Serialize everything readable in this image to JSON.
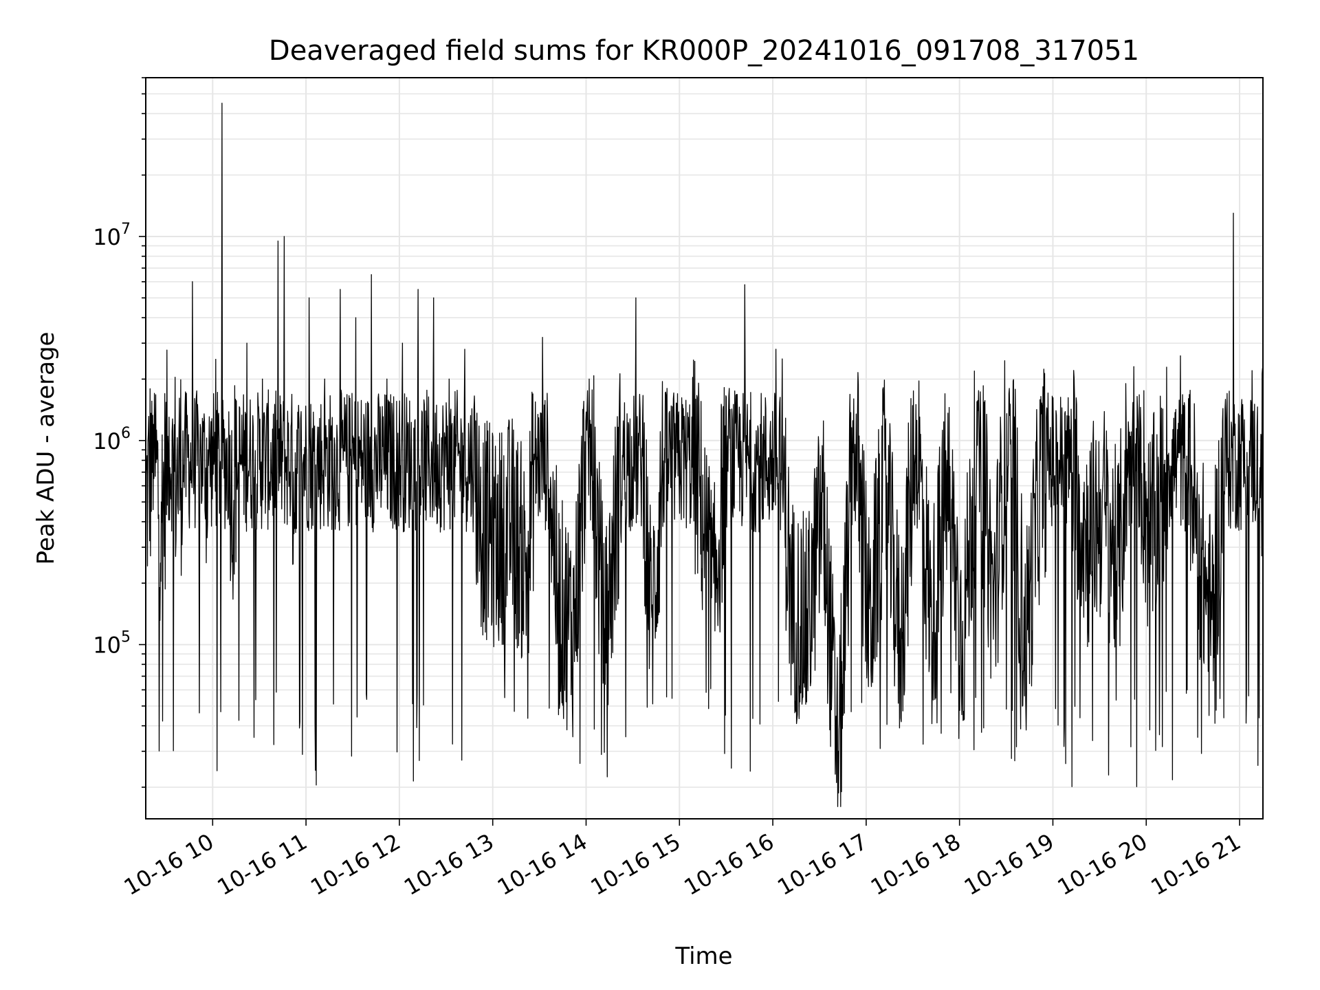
{
  "chart_data": {
    "type": "line",
    "title": "Deaveraged field sums for KR000P_20241016_091708_317051",
    "xlabel": "Time",
    "ylabel": "Peak ADU - average",
    "x_range": [
      "10-16 09:17",
      "10-16 21:15"
    ],
    "y_scale": "log",
    "ylim": [
      14000,
      60000000
    ],
    "grid": true,
    "x_ticks": [
      "10-16 10",
      "10-16 11",
      "10-16 12",
      "10-16 13",
      "10-16 14",
      "10-16 15",
      "10-16 16",
      "10-16 17",
      "10-16 18",
      "10-16 19",
      "10-16 20",
      "10-16 21"
    ],
    "x_tick_hours": [
      10,
      11,
      12,
      13,
      14,
      15,
      16,
      17,
      18,
      19,
      20,
      21
    ],
    "y_ticks": [
      {
        "base": "10",
        "exp": "5",
        "value": 100000
      },
      {
        "base": "10",
        "exp": "6",
        "value": 1000000
      },
      {
        "base": "10",
        "exp": "7",
        "value": 10000000
      }
    ],
    "line_color": "#000000",
    "series": [
      {
        "x": [
          "10-16 09:17",
          "10-16 09:22",
          "10-16 09:27",
          "10-16 09:32",
          "10-16 09:37",
          "10-16 09:42",
          "10-16 09:47",
          "10-16 09:52",
          "10-16 09:57",
          "10-16 10:02",
          "10-16 10:06",
          "10-16 10:12",
          "10-16 10:22",
          "10-16 10:32",
          "10-16 10:42",
          "10-16 10:46",
          "10-16 10:52",
          "10-16 11:02",
          "10-16 11:12",
          "10-16 11:22",
          "10-16 11:32",
          "10-16 11:42",
          "10-16 11:52",
          "10-16 12:02",
          "10-16 12:12",
          "10-16 12:22",
          "10-16 12:32",
          "10-16 12:42",
          "10-16 12:52",
          "10-16 13:02",
          "10-16 13:12",
          "10-16 13:22",
          "10-16 13:32",
          "10-16 13:42",
          "10-16 13:52",
          "10-16 14:02",
          "10-16 14:12",
          "10-16 14:22",
          "10-16 14:32",
          "10-16 14:42",
          "10-16 14:52",
          "10-16 15:02",
          "10-16 15:12",
          "10-16 15:22",
          "10-16 15:32",
          "10-16 15:42",
          "10-16 15:52",
          "10-16 16:02",
          "10-16 16:12",
          "10-16 16:22",
          "10-16 16:32",
          "10-16 16:42",
          "10-16 16:52",
          "10-16 17:02",
          "10-16 17:12",
          "10-16 17:22",
          "10-16 17:32",
          "10-16 17:42",
          "10-16 17:52",
          "10-16 18:02",
          "10-16 18:12",
          "10-16 18:22",
          "10-16 18:32",
          "10-16 18:42",
          "10-16 18:52",
          "10-16 19:02",
          "10-16 19:12",
          "10-16 19:22",
          "10-16 19:32",
          "10-16 19:42",
          "10-16 19:52",
          "10-16 20:02",
          "10-16 20:12",
          "10-16 20:22",
          "10-16 20:32",
          "10-16 20:42",
          "10-16 20:52",
          "10-16 20:56",
          "10-16 21:02",
          "10-16 21:08",
          "10-16 21:15"
        ],
        "y": [
          600000,
          1200000,
          500000,
          1300000,
          800000,
          1100000,
          6000000,
          1200000,
          900000,
          2500000,
          45000000,
          600000,
          3000000,
          2000000,
          9500000,
          10000000,
          700000,
          5000000,
          2000000,
          5500000,
          4000000,
          6500000,
          2000000,
          3000000,
          5500000,
          5000000,
          2000000,
          2800000,
          500000,
          400000,
          500000,
          300000,
          3200000,
          200000,
          150000,
          2000000,
          120000,
          900000,
          5000000,
          150000,
          1800000,
          1500000,
          800000,
          200000,
          1800000,
          5800000,
          1200000,
          2800000,
          200000,
          150000,
          600000,
          30000,
          1600000,
          150000,
          800000,
          120000,
          1500000,
          150000,
          800000,
          130000,
          1400000,
          200000,
          1800000,
          120000,
          800000,
          1400000,
          1000000,
          400000,
          600000,
          300000,
          2300000,
          400000,
          800000,
          2600000,
          500000,
          150000,
          1700000,
          13000000,
          1500000,
          2200000,
          900000
        ]
      }
    ]
  }
}
